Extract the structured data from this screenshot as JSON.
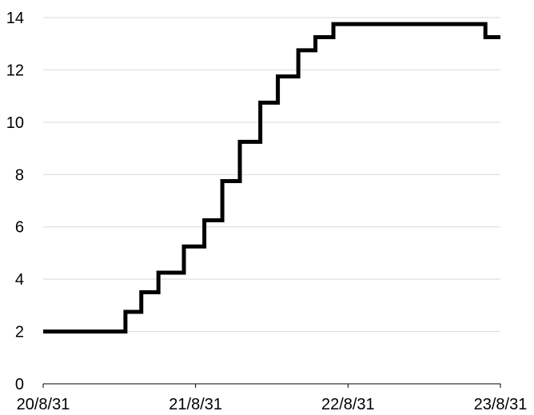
{
  "chart_data": {
    "type": "line",
    "title": "",
    "xlabel": "",
    "ylabel": "",
    "interpolation": "step",
    "x_ticks": [
      "20/8/31",
      "21/8/31",
      "22/8/31",
      "23/8/31"
    ],
    "x_range": [
      "2020-08-31",
      "2023-08-31"
    ],
    "ylim": [
      0,
      14
    ],
    "y_ticks": [
      0,
      2,
      4,
      6,
      8,
      10,
      12,
      14
    ],
    "grid": "horizontal",
    "legend": "none",
    "series": [
      {
        "color": "#000000",
        "points": [
          {
            "x": "2020-08-31",
            "y": 2.0
          },
          {
            "x": "2021-03-16",
            "y": 2.75
          },
          {
            "x": "2021-04-23",
            "y": 3.5
          },
          {
            "x": "2021-06-03",
            "y": 4.25
          },
          {
            "x": "2021-08-03",
            "y": 5.25
          },
          {
            "x": "2021-09-21",
            "y": 6.25
          },
          {
            "x": "2021-11-03",
            "y": 7.75
          },
          {
            "x": "2021-12-15",
            "y": 9.25
          },
          {
            "x": "2022-02-02",
            "y": 10.75
          },
          {
            "x": "2022-03-16",
            "y": 11.75
          },
          {
            "x": "2022-05-04",
            "y": 12.75
          },
          {
            "x": "2022-06-14",
            "y": 13.25
          },
          {
            "x": "2022-07-27",
            "y": 13.75
          },
          {
            "x": "2023-07-26",
            "y": 13.25
          },
          {
            "x": "2023-08-31",
            "y": 13.25
          }
        ]
      }
    ]
  }
}
